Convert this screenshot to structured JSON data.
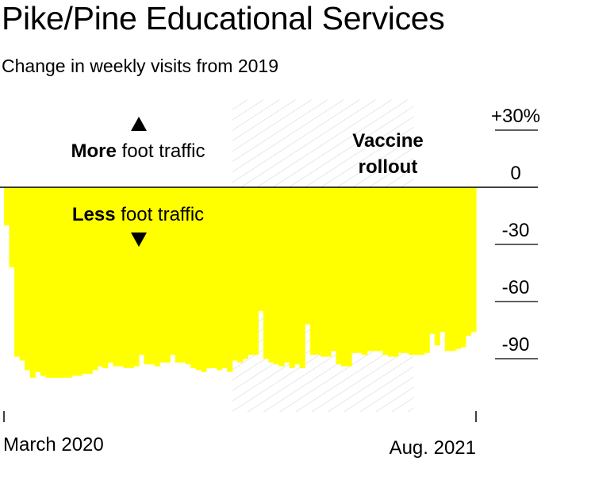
{
  "title": "Pike/Pine Educational Services",
  "subtitle": "Change in weekly visits from 2019",
  "annotations": {
    "more_bold": "More",
    "more_rest": " foot traffic",
    "less_bold": "Less",
    "less_rest": " foot traffic",
    "vaccine_line1": "Vaccine",
    "vaccine_line2": "rollout"
  },
  "x_labels": {
    "start": "March 2020",
    "end": "Aug. 2021"
  },
  "colors": {
    "fill": "#ffff00",
    "hatch": "#d8d8d8",
    "axis": "#000000"
  },
  "chart_data": {
    "type": "area",
    "title": "Pike/Pine Educational Services",
    "subtitle": "Change in weekly visits from 2019",
    "xlabel": "",
    "ylabel": "",
    "ylim": [
      -118,
      46
    ],
    "yticks": [
      {
        "value": 30,
        "label": "+30%"
      },
      {
        "value": 0,
        "label": "0"
      },
      {
        "value": -30,
        "label": "-30"
      },
      {
        "value": -60,
        "label": "-60"
      },
      {
        "value": -90,
        "label": "-90"
      }
    ],
    "x_start": "March 2020",
    "x_end": "Aug. 2021",
    "shaded_region": {
      "label": "Vaccine rollout",
      "start_week": 44,
      "end_week": 79
    },
    "series": [
      {
        "values": [
          -20,
          -42,
          -89,
          -91,
          -96,
          -100,
          -97,
          -99,
          -100,
          -100,
          -100,
          -100,
          -100,
          -99,
          -99,
          -98,
          -98,
          -96,
          -94,
          -95,
          -92,
          -94,
          -94,
          -95,
          -95,
          -94,
          -88,
          -93,
          -93,
          -94,
          -92,
          -92,
          -88,
          -92,
          -92,
          -93,
          -95,
          -96,
          -97,
          -95,
          -95,
          -96,
          -95,
          -97,
          -91,
          -92,
          -90,
          -88,
          -88,
          -65,
          -90,
          -92,
          -93,
          -94,
          -92,
          -95,
          -93,
          -95,
          -72,
          -88,
          -88,
          -89,
          -89,
          -86,
          -93,
          -94,
          -94,
          -87,
          -87,
          -88,
          -86,
          -86,
          -86,
          -88,
          -89,
          -89,
          -87,
          -87,
          -88,
          -88,
          -88,
          -87,
          -77,
          -83,
          -76,
          -86,
          -86,
          -85,
          -84,
          -78,
          -76
        ]
      }
    ]
  }
}
